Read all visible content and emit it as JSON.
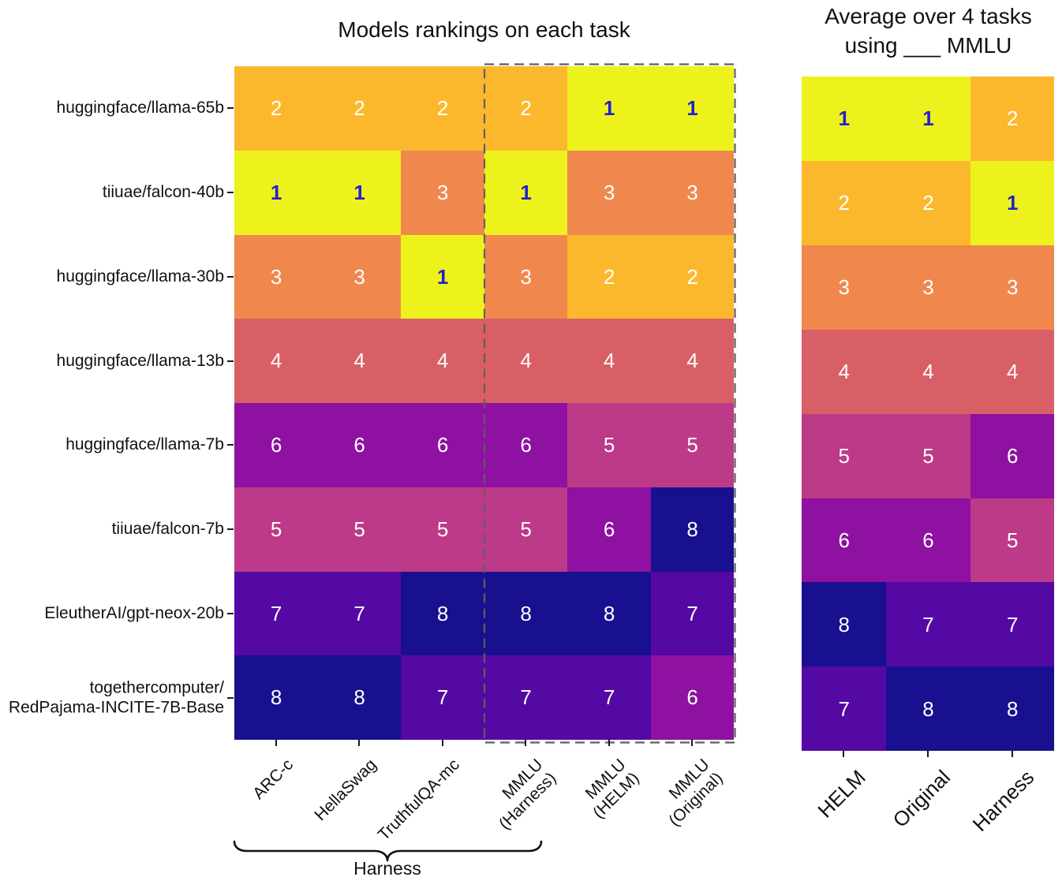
{
  "figure": {
    "left_title": "Models rankings on each task",
    "right_title_line1": "Average over 4 tasks",
    "right_title_line2": "using ___ MMLU",
    "brace_label": "Harness"
  },
  "colors": {
    "background": "#ffffff",
    "rank_palette": {
      "1": "#eef21c",
      "2": "#fcb82d",
      "3": "#f0884e",
      "4": "#d95f67",
      "5": "#bd3a88",
      "6": "#8e11a1",
      "7": "#5408a4",
      "8": "#18108e"
    },
    "value_text": "#ffffff",
    "rank1_value_text": "#2121cd",
    "axis_text": "#111111",
    "tick": "#1a1a1a",
    "dashed_box": "#5f5f5f",
    "brace": "#111111"
  },
  "chart_data": [
    {
      "type": "heatmap",
      "title": "Models rankings on each task",
      "rows": [
        [
          "huggingface/llama-65b"
        ],
        [
          "tiiuae/falcon-40b"
        ],
        [
          "huggingface/llama-30b"
        ],
        [
          "huggingface/llama-13b"
        ],
        [
          "huggingface/llama-7b"
        ],
        [
          "tiiuae/falcon-7b"
        ],
        [
          "EleutherAI/gpt-neox-20b"
        ],
        [
          "togethercomputer/",
          "RedPajama-INCITE-7B-Base"
        ]
      ],
      "columns": [
        [
          "ARC-c"
        ],
        [
          "HellaSwag"
        ],
        [
          "TruthfulQA-mc"
        ],
        [
          "MMLU",
          "(Harness)"
        ],
        [
          "MMLU",
          "(HELM)"
        ],
        [
          "MMLU",
          "(Original)"
        ]
      ],
      "values": [
        [
          2,
          2,
          2,
          2,
          1,
          1
        ],
        [
          1,
          1,
          3,
          1,
          3,
          3
        ],
        [
          3,
          3,
          1,
          3,
          2,
          2
        ],
        [
          4,
          4,
          4,
          4,
          4,
          4
        ],
        [
          6,
          6,
          6,
          6,
          5,
          5
        ],
        [
          5,
          5,
          5,
          5,
          6,
          8
        ],
        [
          7,
          7,
          8,
          8,
          8,
          7
        ],
        [
          8,
          8,
          7,
          7,
          7,
          6
        ]
      ],
      "value_range": [
        1,
        8
      ],
      "annotations": {
        "dashed_box_over_columns": [
          "MMLU (Harness)",
          "MMLU (HELM)",
          "MMLU (Original)"
        ],
        "brace_under_columns": [
          "ARC-c",
          "HellaSwag",
          "TruthfulQA-mc",
          "MMLU (Harness)"
        ],
        "brace_label": "Harness"
      }
    },
    {
      "type": "heatmap",
      "title": "Average over 4 tasks using ___ MMLU",
      "rows_same_as_first_heatmap": true,
      "columns": [
        [
          "HELM"
        ],
        [
          "Original"
        ],
        [
          "Harness"
        ]
      ],
      "values": [
        [
          1,
          1,
          2
        ],
        [
          2,
          2,
          1
        ],
        [
          3,
          3,
          3
        ],
        [
          4,
          4,
          4
        ],
        [
          5,
          5,
          6
        ],
        [
          6,
          6,
          5
        ],
        [
          8,
          7,
          7
        ],
        [
          7,
          8,
          8
        ]
      ],
      "value_range": [
        1,
        8
      ]
    }
  ]
}
